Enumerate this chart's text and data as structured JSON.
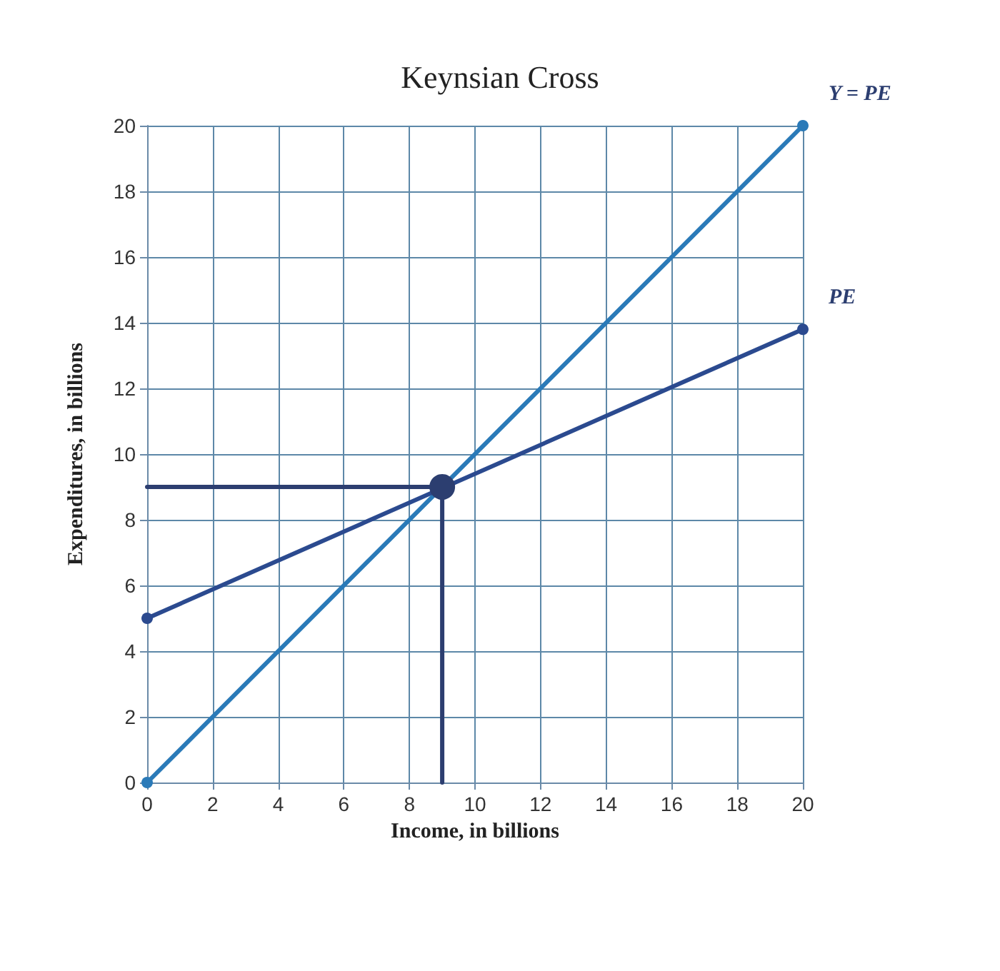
{
  "chart_data": {
    "type": "line",
    "title": "Keynsian Cross",
    "xlabel": "Income, in billions",
    "ylabel": "Expenditures, in billions",
    "xlim": [
      0,
      20
    ],
    "xticks": [
      0,
      2,
      4,
      6,
      8,
      10,
      12,
      14,
      16,
      18,
      20
    ],
    "ylim": [
      0,
      20
    ],
    "yticks": [
      0,
      2,
      4,
      6,
      8,
      10,
      12,
      14,
      16,
      18,
      20
    ],
    "grid": true,
    "legend": false,
    "marker": "circle",
    "series": [
      {
        "name": "Y = PE",
        "color": "#2a7ab8",
        "x": [
          0,
          20
        ],
        "values": [
          0,
          20
        ]
      },
      {
        "name": "PE",
        "color": "#2b4a8f",
        "x": [
          0,
          20
        ],
        "values": [
          5,
          13.8
        ]
      },
      {
        "color": "#2c3e70",
        "x": [
          0,
          9,
          9
        ],
        "values": [
          9,
          9,
          0
        ],
        "marker": "none"
      },
      {
        "type": "scatter",
        "color": "#2c3e70",
        "x": [
          9
        ],
        "values": [
          9
        ]
      }
    ]
  }
}
